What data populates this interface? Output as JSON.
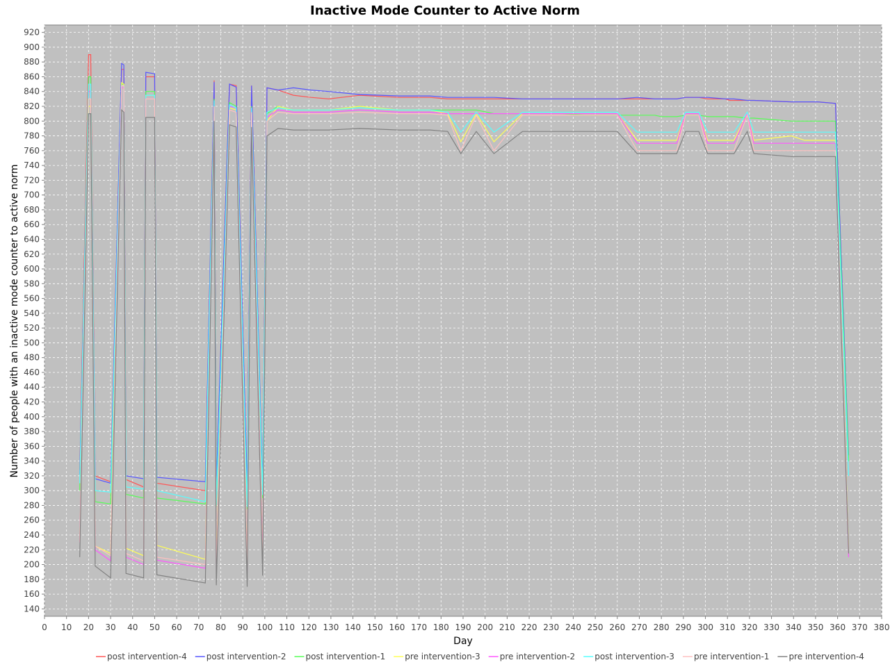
{
  "chart_data": {
    "type": "line",
    "title": "Inactive Mode Counter to Active Norm",
    "xlabel": "Day",
    "ylabel": "Number of people with an inactive mode counter to active norm",
    "xlim": [
      0,
      380
    ],
    "ylim": [
      130,
      930
    ],
    "x_ticks": [
      0,
      10,
      20,
      30,
      40,
      50,
      60,
      70,
      80,
      90,
      100,
      110,
      120,
      130,
      140,
      150,
      160,
      170,
      180,
      190,
      200,
      210,
      220,
      230,
      240,
      250,
      260,
      270,
      280,
      290,
      300,
      310,
      320,
      330,
      340,
      350,
      360,
      370,
      380
    ],
    "y_ticks": [
      140,
      160,
      180,
      200,
      220,
      240,
      260,
      280,
      300,
      320,
      340,
      360,
      380,
      400,
      420,
      440,
      460,
      480,
      500,
      520,
      540,
      560,
      580,
      600,
      620,
      640,
      660,
      680,
      700,
      720,
      740,
      760,
      780,
      800,
      820,
      840,
      860,
      880,
      900,
      920
    ],
    "grid": true,
    "legend_position": "bottom",
    "background": "#c0c0c0",
    "peak_days": [
      20,
      35,
      45,
      50,
      77,
      84,
      87,
      92,
      94,
      99,
      101,
      106,
      113,
      121,
      129,
      143,
      161,
      175,
      183,
      189,
      196,
      204,
      217,
      226,
      232,
      234,
      246,
      252,
      255,
      260,
      269,
      277,
      280,
      287,
      291,
      297,
      301,
      309,
      311,
      313,
      319,
      322,
      339,
      345,
      351,
      359,
      365
    ],
    "series": [
      {
        "name": "post intervention-4",
        "color": "#ff5555",
        "x": [
          16,
          20,
          21,
          23,
          30,
          35,
          36,
          37,
          45,
          46,
          50,
          51,
          73,
          77,
          78,
          84,
          87,
          92,
          94,
          99,
          101,
          106,
          113,
          121,
          129,
          143,
          161,
          175,
          183,
          189,
          196,
          204,
          217,
          226,
          232,
          234,
          246,
          252,
          255,
          260,
          269,
          277,
          280,
          287,
          291,
          297,
          301,
          309,
          311,
          313,
          319,
          322,
          339,
          345,
          351,
          359,
          365
        ],
        "y": [
          328,
          890,
          890,
          320,
          312,
          870,
          870,
          315,
          305,
          860,
          860,
          310,
          300,
          855,
          302,
          850,
          848,
          296,
          848,
          298,
          845,
          842,
          835,
          832,
          830,
          835,
          832,
          832,
          830,
          830,
          830,
          830,
          830,
          830,
          830,
          830,
          830,
          830,
          830,
          830,
          830,
          830,
          830,
          830,
          832,
          832,
          830,
          830,
          828,
          828,
          828,
          828,
          826,
          826,
          826,
          824,
          340
        ]
      },
      {
        "name": "post intervention-2",
        "color": "#5555ff",
        "x": [
          16,
          20,
          21,
          23,
          30,
          35,
          36,
          37,
          45,
          46,
          50,
          51,
          73,
          77,
          78,
          84,
          87,
          92,
          94,
          99,
          101,
          106,
          113,
          121,
          129,
          143,
          161,
          175,
          183,
          189,
          196,
          204,
          217,
          226,
          232,
          234,
          246,
          252,
          255,
          260,
          269,
          277,
          280,
          287,
          291,
          297,
          301,
          309,
          311,
          313,
          319,
          322,
          339,
          345,
          351,
          359,
          365
        ],
        "y": [
          322,
          860,
          860,
          316,
          310,
          878,
          876,
          320,
          316,
          866,
          864,
          318,
          312,
          853,
          308,
          850,
          846,
          304,
          848,
          306,
          845,
          842,
          845,
          842,
          840,
          836,
          834,
          834,
          832,
          832,
          832,
          832,
          830,
          830,
          830,
          830,
          830,
          830,
          830,
          830,
          832,
          830,
          830,
          830,
          832,
          832,
          832,
          830,
          830,
          830,
          828,
          828,
          826,
          826,
          826,
          824,
          348
        ]
      },
      {
        "name": "post intervention-1",
        "color": "#55ff55",
        "x": [
          16,
          20,
          21,
          23,
          30,
          35,
          36,
          37,
          45,
          46,
          50,
          51,
          73,
          77,
          78,
          84,
          87,
          92,
          94,
          99,
          101,
          106,
          113,
          121,
          129,
          143,
          161,
          175,
          183,
          189,
          196,
          204,
          217,
          226,
          232,
          234,
          246,
          252,
          255,
          260,
          269,
          277,
          280,
          287,
          291,
          297,
          301,
          309,
          311,
          313,
          319,
          322,
          339,
          345,
          351,
          359,
          365
        ],
        "y": [
          300,
          860,
          860,
          285,
          282,
          850,
          850,
          295,
          290,
          840,
          840,
          290,
          282,
          830,
          278,
          825,
          820,
          275,
          820,
          290,
          810,
          820,
          815,
          815,
          815,
          820,
          815,
          815,
          815,
          815,
          815,
          810,
          810,
          810,
          810,
          810,
          808,
          808,
          808,
          808,
          808,
          808,
          806,
          806,
          808,
          808,
          806,
          806,
          806,
          806,
          804,
          804,
          800,
          800,
          800,
          800,
          340
        ]
      },
      {
        "name": "pre intervention-3",
        "color": "#ffff55",
        "x": [
          16,
          20,
          21,
          23,
          30,
          35,
          36,
          37,
          45,
          46,
          50,
          51,
          73,
          77,
          78,
          84,
          87,
          92,
          94,
          99,
          101,
          106,
          113,
          121,
          129,
          143,
          161,
          175,
          183,
          189,
          196,
          204,
          217,
          226,
          232,
          234,
          246,
          252,
          255,
          260,
          269,
          277,
          280,
          287,
          291,
          297,
          301,
          309,
          311,
          313,
          319,
          322,
          339,
          345,
          351,
          359,
          365
        ],
        "y": [
          232,
          820,
          820,
          225,
          215,
          852,
          850,
          222,
          212,
          835,
          835,
          226,
          207,
          820,
          202,
          818,
          815,
          197,
          815,
          210,
          800,
          820,
          815,
          815,
          815,
          820,
          815,
          815,
          810,
          772,
          810,
          772,
          810,
          810,
          810,
          810,
          810,
          810,
          810,
          810,
          774,
          774,
          774,
          774,
          810,
          810,
          774,
          774,
          774,
          774,
          810,
          774,
          780,
          774,
          774,
          774,
          220
        ]
      },
      {
        "name": "pre intervention-2",
        "color": "#ff55ff",
        "x": [
          16,
          20,
          21,
          23,
          30,
          35,
          36,
          37,
          45,
          46,
          50,
          51,
          73,
          77,
          78,
          84,
          87,
          92,
          94,
          99,
          101,
          106,
          113,
          121,
          129,
          143,
          161,
          175,
          183,
          189,
          196,
          204,
          217,
          226,
          232,
          234,
          246,
          252,
          255,
          260,
          269,
          277,
          280,
          287,
          291,
          297,
          301,
          309,
          311,
          313,
          319,
          322,
          339,
          345,
          351,
          359,
          365
        ],
        "y": [
          230,
          840,
          840,
          220,
          205,
          845,
          845,
          210,
          200,
          830,
          830,
          206,
          195,
          825,
          190,
          820,
          818,
          190,
          818,
          205,
          805,
          815,
          812,
          812,
          812,
          815,
          812,
          812,
          810,
          810,
          810,
          810,
          810,
          810,
          810,
          810,
          810,
          810,
          810,
          810,
          770,
          770,
          770,
          770,
          810,
          810,
          770,
          770,
          770,
          770,
          810,
          770,
          770,
          770,
          770,
          770,
          210
        ]
      },
      {
        "name": "post intervention-3",
        "color": "#55ffff",
        "x": [
          16,
          20,
          21,
          23,
          30,
          35,
          36,
          37,
          45,
          46,
          50,
          51,
          73,
          77,
          78,
          84,
          87,
          92,
          94,
          99,
          101,
          106,
          113,
          121,
          129,
          143,
          161,
          175,
          183,
          189,
          196,
          204,
          217,
          226,
          232,
          234,
          246,
          252,
          255,
          260,
          269,
          277,
          280,
          287,
          291,
          297,
          301,
          309,
          311,
          313,
          319,
          322,
          339,
          345,
          351,
          359,
          365
        ],
        "y": [
          310,
          850,
          850,
          300,
          298,
          848,
          848,
          305,
          302,
          835,
          835,
          300,
          285,
          828,
          280,
          822,
          818,
          278,
          818,
          294,
          812,
          818,
          815,
          815,
          815,
          818,
          815,
          815,
          812,
          785,
          812,
          785,
          812,
          812,
          812,
          812,
          812,
          812,
          812,
          812,
          785,
          785,
          785,
          785,
          812,
          812,
          785,
          785,
          785,
          785,
          812,
          785,
          785,
          785,
          785,
          785,
          320
        ]
      },
      {
        "name": "pre intervention-1",
        "color": "#ffc0c0",
        "x": [
          16,
          20,
          21,
          23,
          30,
          35,
          36,
          37,
          45,
          46,
          50,
          51,
          73,
          77,
          78,
          84,
          87,
          92,
          94,
          99,
          101,
          106,
          113,
          121,
          129,
          143,
          161,
          175,
          183,
          189,
          196,
          204,
          217,
          226,
          232,
          234,
          246,
          252,
          255,
          260,
          269,
          277,
          280,
          287,
          291,
          297,
          301,
          309,
          311,
          313,
          319,
          322,
          339,
          345,
          351,
          359,
          365
        ],
        "y": [
          230,
          830,
          830,
          225,
          212,
          848,
          848,
          215,
          205,
          830,
          830,
          210,
          200,
          820,
          195,
          815,
          812,
          195,
          812,
          200,
          800,
          812,
          810,
          810,
          810,
          812,
          810,
          810,
          808,
          760,
          808,
          760,
          808,
          808,
          808,
          808,
          808,
          808,
          808,
          808,
          760,
          760,
          760,
          760,
          808,
          808,
          760,
          760,
          760,
          760,
          808,
          760,
          760,
          760,
          760,
          760,
          215
        ]
      },
      {
        "name": "pre intervention-4",
        "color": "#808080",
        "x": [
          16,
          20,
          21,
          23,
          30,
          35,
          36,
          37,
          45,
          46,
          50,
          51,
          73,
          77,
          78,
          84,
          87,
          92,
          94,
          99,
          101,
          106,
          113,
          121,
          129,
          143,
          161,
          175,
          183,
          189,
          196,
          204,
          217,
          226,
          232,
          234,
          246,
          252,
          255,
          260,
          269,
          277,
          280,
          287,
          291,
          297,
          301,
          309,
          311,
          313,
          319,
          322,
          339,
          345,
          351,
          359,
          365
        ],
        "y": [
          210,
          810,
          810,
          198,
          182,
          815,
          812,
          188,
          182,
          805,
          805,
          186,
          175,
          800,
          172,
          795,
          792,
          170,
          792,
          185,
          780,
          790,
          788,
          788,
          788,
          790,
          788,
          788,
          786,
          756,
          786,
          756,
          786,
          786,
          786,
          786,
          786,
          786,
          786,
          786,
          756,
          756,
          756,
          756,
          786,
          786,
          756,
          756,
          756,
          756,
          786,
          756,
          752,
          752,
          752,
          752,
          215
        ]
      }
    ]
  }
}
